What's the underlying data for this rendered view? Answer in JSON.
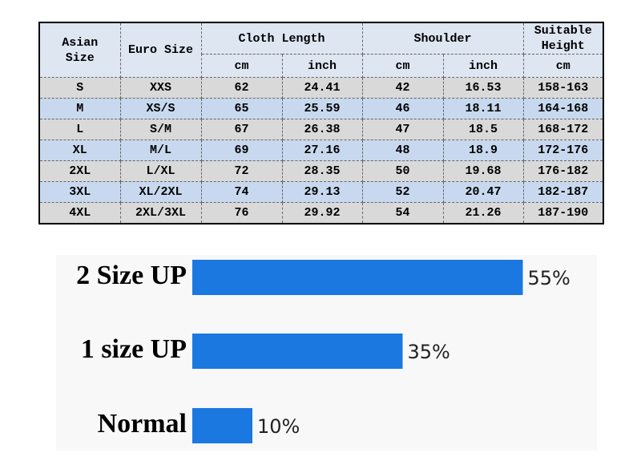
{
  "table": {
    "header": [
      "Asian\nSize",
      "Euro Size",
      "Cloth Length",
      "Shoulder",
      "Suitable\nHeight"
    ],
    "subheader": [
      "cm",
      "inch",
      "cm",
      "inch",
      "cm"
    ],
    "rows": [
      [
        "S",
        "XXS",
        "62",
        "24.41",
        "42",
        "16.53",
        "158-163"
      ],
      [
        "M",
        "XS/S",
        "65",
        "25.59",
        "46",
        "18.11",
        "164-168"
      ],
      [
        "L",
        "S/M",
        "67",
        "26.38",
        "47",
        "18.5",
        "168-172"
      ],
      [
        "XL",
        "M/L",
        "69",
        "27.16",
        "48",
        "18.9",
        "172-176"
      ],
      [
        "2XL",
        "L/XL",
        "72",
        "28.35",
        "50",
        "19.68",
        "176-182"
      ],
      [
        "3XL",
        "XL/2XL",
        "74",
        "29.13",
        "52",
        "20.47",
        "182-187"
      ],
      [
        "4XL",
        "2XL/3XL",
        "76",
        "29.92",
        "54",
        "21.26",
        "187-190"
      ]
    ]
  },
  "chart_data": {
    "type": "bar",
    "orientation": "horizontal",
    "categories": [
      "2 Size UP",
      "1 size UP",
      "Normal"
    ],
    "values": [
      55,
      35,
      10
    ],
    "value_labels": [
      "55%",
      "35%",
      "10%"
    ],
    "color": "#1a78e0"
  }
}
